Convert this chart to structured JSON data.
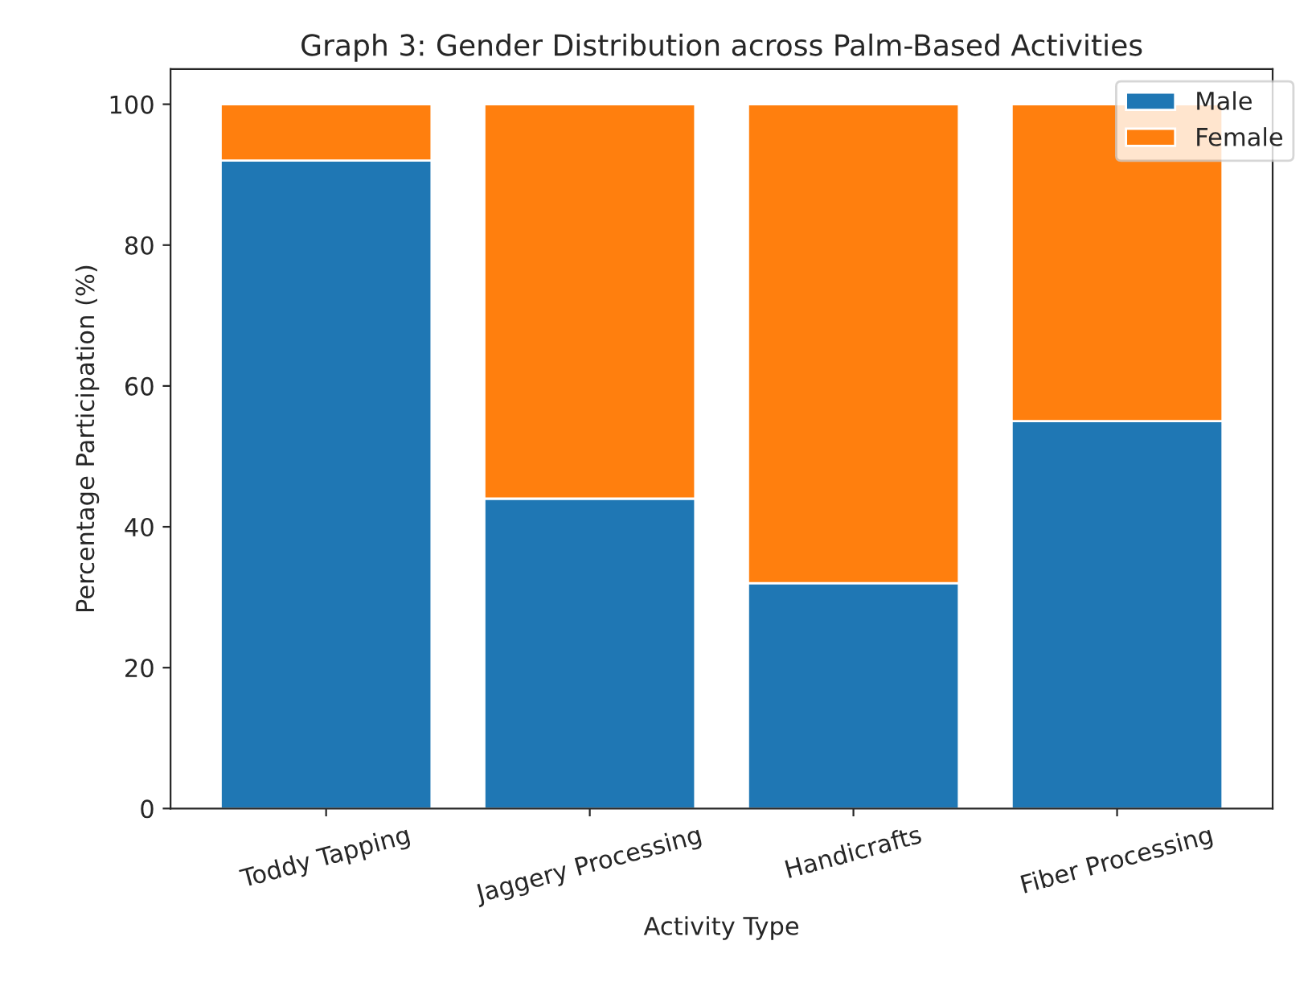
{
  "chart_data": {
    "type": "bar",
    "title": "Graph 3: Gender Distribution across Palm-Based Activities",
    "xlabel": "Activity Type",
    "ylabel": "Percentage Participation (%)",
    "categories": [
      "Toddy Tapping",
      "Jaggery Processing",
      "Handicrafts",
      "Fiber Processing"
    ],
    "series": [
      {
        "name": "Male",
        "color": "#1f77b4",
        "values": [
          92,
          44,
          32,
          55
        ]
      },
      {
        "name": "Female",
        "color": "#ff7f0e",
        "values": [
          8,
          56,
          68,
          45
        ]
      }
    ],
    "stacked": true,
    "ylim": [
      0,
      105
    ],
    "yticks": [
      0,
      20,
      40,
      60,
      80,
      100
    ],
    "legend": "top right",
    "grid": false
  }
}
